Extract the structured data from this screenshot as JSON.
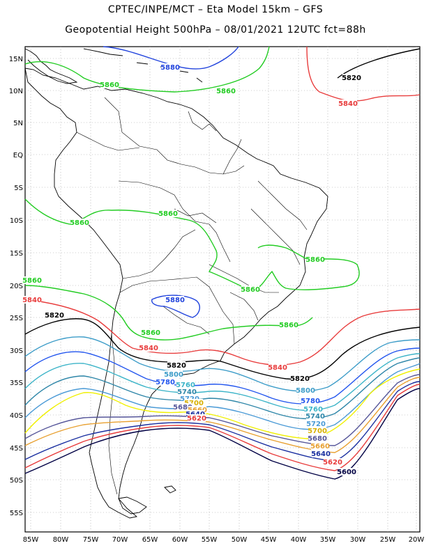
{
  "header": {
    "line1": "CPTEC/INPE/MCT –  Eta Model 15km – GFS",
    "line2": "Geopotential Height 500hPa – 08/01/2021 12UTC fct=88h"
  },
  "map": {
    "lat_labels": [
      "15N",
      "10N",
      "5N",
      "EQ",
      "5S",
      "10S",
      "15S",
      "20S",
      "25S",
      "30S",
      "35S",
      "40S",
      "45S",
      "50S",
      "55S"
    ],
    "lon_labels": [
      "85W",
      "80W",
      "75W",
      "70W",
      "65W",
      "60W",
      "55W",
      "50W",
      "45W",
      "40W",
      "35W",
      "30W",
      "25W",
      "20W"
    ],
    "contours": [
      {
        "value": "5880",
        "color": "#2244dd"
      },
      {
        "value": "5860",
        "color": "#22cc22"
      },
      {
        "value": "5840",
        "color": "#e83c3c"
      },
      {
        "value": "5820",
        "color": "#000000"
      },
      {
        "value": "5800",
        "color": "#3c9cc8"
      },
      {
        "value": "5780",
        "color": "#2255ee"
      },
      {
        "value": "5760",
        "color": "#3cb4c8"
      },
      {
        "value": "5740",
        "color": "#2e86a8"
      },
      {
        "value": "5720",
        "color": "#4a9ad6"
      },
      {
        "value": "5700",
        "color": "#f0f000"
      },
      {
        "value": "5680",
        "color": "#555599"
      },
      {
        "value": "5660",
        "color": "#e8a030"
      },
      {
        "value": "5640",
        "color": "#1a2fa0"
      },
      {
        "value": "5620",
        "color": "#e83c3c"
      },
      {
        "value": "5600",
        "color": "#000044"
      }
    ],
    "contour_labels": [
      {
        "text": "5880",
        "color": "#2244dd"
      },
      {
        "text": "5880",
        "color": "#2244dd"
      },
      {
        "text": "5860",
        "color": "#22cc22"
      },
      {
        "text": "5860",
        "color": "#22cc22"
      },
      {
        "text": "5860",
        "color": "#22cc22"
      },
      {
        "text": "5860",
        "color": "#22cc22"
      },
      {
        "text": "5860",
        "color": "#22cc22"
      },
      {
        "text": "5860",
        "color": "#22cc22"
      },
      {
        "text": "5860",
        "color": "#22cc22"
      },
      {
        "text": "5860",
        "color": "#22cc22"
      },
      {
        "text": "5860",
        "color": "#22cc22"
      },
      {
        "text": "5840",
        "color": "#e83c3c"
      },
      {
        "text": "5840",
        "color": "#e83c3c"
      },
      {
        "text": "5840",
        "color": "#e83c3c"
      },
      {
        "text": "5840",
        "color": "#e83c3c"
      },
      {
        "text": "5820",
        "color": "#000000"
      },
      {
        "text": "5820",
        "color": "#000000"
      },
      {
        "text": "5820",
        "color": "#000000"
      },
      {
        "text": "5820",
        "color": "#000000"
      },
      {
        "text": "5800",
        "color": "#3c9cc8"
      },
      {
        "text": "5800",
        "color": "#3c9cc8"
      },
      {
        "text": "5780",
        "color": "#2255ee"
      },
      {
        "text": "5780",
        "color": "#2255ee"
      },
      {
        "text": "5760",
        "color": "#3cb4c8"
      },
      {
        "text": "5760",
        "color": "#3cb4c8"
      },
      {
        "text": "5740",
        "color": "#2e86a8"
      },
      {
        "text": "5740",
        "color": "#2e86a8"
      },
      {
        "text": "5720",
        "color": "#4a9ad6"
      },
      {
        "text": "5720",
        "color": "#4a9ad6"
      },
      {
        "text": "5700",
        "color": "#d8b000"
      },
      {
        "text": "5700",
        "color": "#d8b000"
      },
      {
        "text": "5680",
        "color": "#555599"
      },
      {
        "text": "5680",
        "color": "#555599"
      },
      {
        "text": "5660",
        "color": "#e8a030"
      },
      {
        "text": "5660",
        "color": "#e8a030"
      },
      {
        "text": "5640",
        "color": "#1a2fa0"
      },
      {
        "text": "5640",
        "color": "#1a2fa0"
      },
      {
        "text": "5620",
        "color": "#e83c3c"
      },
      {
        "text": "5620",
        "color": "#e83c3c"
      },
      {
        "text": "5600",
        "color": "#000044"
      }
    ]
  }
}
